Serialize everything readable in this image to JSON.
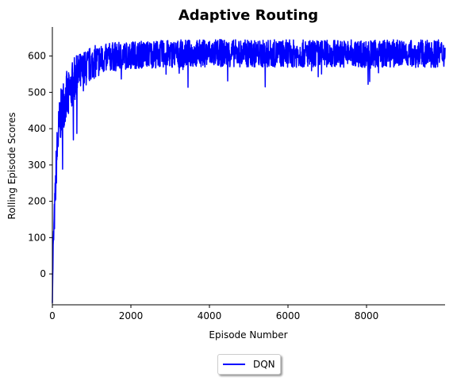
{
  "chart_data": {
    "type": "line",
    "title": "Adaptive Routing",
    "xlabel": "Episode Number",
    "ylabel": "Rolling Episode Scores",
    "xlim": [
      0,
      10000
    ],
    "ylim": [
      -85,
      680
    ],
    "xticks": [
      0,
      2000,
      4000,
      6000,
      8000
    ],
    "yticks": [
      0,
      100,
      200,
      300,
      400,
      500,
      600
    ],
    "grid": false,
    "legend_placement": "below plot, centered",
    "series": [
      {
        "name": "DQN",
        "color": "#0000ff",
        "x": [
          0,
          20,
          50,
          80,
          100,
          130,
          160,
          200,
          240,
          280,
          320,
          360,
          400,
          450,
          500,
          550,
          600,
          650,
          700,
          750,
          800,
          850,
          900,
          950,
          1000,
          1100,
          1200,
          1300,
          1400,
          1500,
          1750,
          2000,
          2500,
          3000,
          3500,
          4000,
          4500,
          5000,
          5300,
          5500,
          6000,
          6500,
          7000,
          7500,
          8000,
          8500,
          9000,
          9500,
          10000
        ],
        "y": [
          -80,
          60,
          150,
          230,
          300,
          350,
          390,
          430,
          450,
          470,
          480,
          490,
          480,
          500,
          520,
          530,
          540,
          545,
          550,
          555,
          560,
          565,
          570,
          575,
          580,
          585,
          588,
          590,
          595,
          598,
          600,
          603,
          605,
          606,
          607,
          608,
          608,
          607,
          606,
          607,
          607,
          606,
          607,
          607,
          606,
          607,
          607,
          606,
          607
        ],
        "noise": [
          0,
          40,
          50,
          60,
          65,
          70,
          70,
          70,
          70,
          70,
          70,
          70,
          70,
          70,
          65,
          65,
          60,
          60,
          60,
          55,
          55,
          50,
          50,
          50,
          45,
          45,
          45,
          40,
          40,
          40,
          38,
          38,
          38,
          38,
          38,
          38,
          38,
          38,
          38,
          38,
          38,
          38,
          38,
          38,
          38,
          38,
          38,
          38,
          38
        ]
      }
    ]
  },
  "legend": {
    "items": [
      {
        "label": "DQN",
        "color": "#0000ff"
      }
    ]
  }
}
